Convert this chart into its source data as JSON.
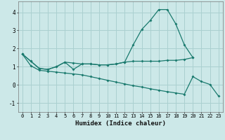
{
  "xlabel": "Humidex (Indice chaleur)",
  "bg_color": "#cce8e8",
  "grid_color": "#aad0d0",
  "line_color": "#1a7a6e",
  "x_values": [
    0,
    1,
    2,
    3,
    4,
    5,
    6,
    7,
    8,
    9,
    10,
    11,
    12,
    13,
    14,
    15,
    16,
    17,
    18,
    19,
    20,
    21,
    22,
    23
  ],
  "series1": [
    1.7,
    1.3,
    0.9,
    0.85,
    1.0,
    1.25,
    0.85,
    1.15,
    1.15,
    1.1,
    1.1,
    1.15,
    1.25,
    2.2,
    3.05,
    3.55,
    4.15,
    4.15,
    3.35,
    2.2,
    1.5,
    null,
    null,
    null
  ],
  "series2": [
    1.7,
    1.3,
    0.9,
    0.85,
    1.0,
    1.25,
    1.2,
    1.15,
    1.15,
    1.1,
    1.1,
    1.15,
    1.25,
    1.3,
    1.3,
    1.3,
    1.3,
    1.35,
    1.35,
    1.4,
    1.5,
    null,
    null,
    null
  ],
  "series3_x": [
    0,
    1,
    2,
    3,
    4,
    5,
    6,
    7,
    8,
    9,
    10,
    11,
    12,
    13,
    14,
    15,
    16,
    17,
    18,
    19,
    20,
    21,
    22,
    23
  ],
  "series3": [
    1.7,
    1.05,
    0.8,
    0.75,
    0.7,
    0.65,
    0.6,
    0.55,
    0.45,
    0.35,
    0.25,
    0.15,
    0.05,
    -0.05,
    -0.12,
    -0.22,
    -0.3,
    -0.38,
    -0.45,
    -0.52,
    0.45,
    0.18,
    0.02,
    -0.62
  ],
  "ylim": [
    -1.5,
    4.6
  ],
  "yticks": [
    -1,
    0,
    1,
    2,
    3,
    4
  ],
  "xlim": [
    -0.5,
    23.5
  ]
}
